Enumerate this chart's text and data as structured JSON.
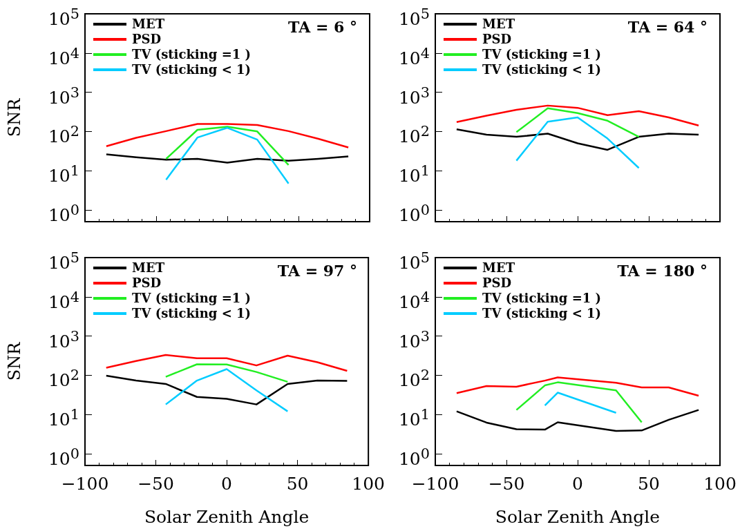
{
  "chart_data": [
    {
      "type": "line",
      "ylabel": "SNR",
      "annotations": [
        "TA = 6 °"
      ],
      "log": "y",
      "legend": "top left",
      "tick_labels": "y",
      "xlim": [
        -100,
        100
      ],
      "xticks": [
        -100,
        -50,
        0,
        50,
        100
      ],
      "ylim": [
        0.5,
        100000
      ],
      "yticks": [
        {
          "value": 1,
          "label": "10$^{0}$"
        },
        {
          "value": 10,
          "label": "10$^{1}$"
        },
        {
          "value": 100,
          "label": "10$^{2}$"
        },
        {
          "value": 1000,
          "label": "10$^{3}$"
        },
        {
          "value": 10000,
          "label": "10$^{4}$"
        },
        {
          "value": 100000,
          "label": "10$^{5}$"
        }
      ],
      "series": [
        {
          "name": "MET",
          "color": "#000000",
          "x": [
            -85,
            -64,
            -43,
            -21,
            0,
            21,
            43,
            64,
            85
          ],
          "values": [
            26,
            22,
            19,
            20,
            16,
            20,
            18,
            20,
            23
          ]
        },
        {
          "name": "PSD",
          "color": "#ff0000",
          "x": [
            -85,
            -64,
            -43,
            -21,
            0,
            21,
            43,
            64,
            85
          ],
          "values": [
            42,
            69,
            102,
            155,
            155,
            146,
            102,
            65,
            39
          ]
        },
        {
          "name": "TV (sticking =1 )",
          "color": "#22ee22",
          "x": [
            -43,
            -21,
            0,
            21,
            43
          ],
          "values": [
            20,
            110,
            132,
            100,
            14
          ]
        },
        {
          "name": "TV (sticking < 1)",
          "color": "#00ccff",
          "x": [
            -43,
            -21,
            0,
            21,
            43
          ],
          "values": [
            5.9,
            70,
            124,
            62,
            4.7
          ]
        }
      ]
    },
    {
      "type": "line",
      "annotations": [
        "TA = 64 °"
      ],
      "log": "y",
      "legend": "top left",
      "tick_labels": "y",
      "xlim": [
        -100,
        100
      ],
      "xticks": [
        -100,
        -50,
        0,
        50,
        100
      ],
      "ylim": [
        0.5,
        100000
      ],
      "yticks": [
        {
          "value": 1,
          "label": "10$^{0}$"
        },
        {
          "value": 10,
          "label": "10$^{1}$"
        },
        {
          "value": 100,
          "label": "10$^{2}$"
        },
        {
          "value": 1000,
          "label": "10$^{3}$"
        },
        {
          "value": 10000,
          "label": "10$^{4}$"
        },
        {
          "value": 100000,
          "label": "10$^{5}$"
        }
      ],
      "series": [
        {
          "name": "MET",
          "color": "#000000",
          "x": [
            -85,
            -64,
            -43,
            -21,
            0,
            21,
            43,
            64,
            85
          ],
          "values": [
            113,
            83,
            73,
            88,
            50,
            34,
            73,
            88,
            83
          ]
        },
        {
          "name": "PSD",
          "color": "#ff0000",
          "x": [
            -85,
            -64,
            -43,
            -21,
            0,
            21,
            43,
            64,
            85
          ],
          "values": [
            174,
            253,
            355,
            457,
            400,
            260,
            330,
            228,
            142
          ]
        },
        {
          "name": "TV (sticking =1 )",
          "color": "#22ee22",
          "x": [
            -43,
            -21,
            0,
            21,
            43
          ],
          "values": [
            96,
            390,
            295,
            188,
            73
          ]
        },
        {
          "name": "TV (sticking < 1)",
          "color": "#00ccff",
          "x": [
            -43,
            -21,
            0,
            21,
            43
          ],
          "values": [
            18,
            177,
            228,
            66,
            11.7
          ]
        }
      ]
    },
    {
      "type": "line",
      "ylabel": "SNR",
      "xlabel": "Solar Zenith Angle",
      "annotations": [
        "TA = 97 °"
      ],
      "log": "y",
      "legend": "top left",
      "xlim": [
        -100,
        100
      ],
      "xticks": [
        -100,
        -50,
        0,
        50,
        100
      ],
      "ylim": [
        0.5,
        100000
      ],
      "yticks": [
        {
          "value": 1,
          "label": "10$^{0}$"
        },
        {
          "value": 10,
          "label": "10$^{1}$"
        },
        {
          "value": 100,
          "label": "10$^{2}$"
        },
        {
          "value": 1000,
          "label": "10$^{3}$"
        },
        {
          "value": 10000,
          "label": "10$^{4}$"
        },
        {
          "value": 100000,
          "label": "10$^{5}$"
        }
      ],
      "series": [
        {
          "name": "MET",
          "color": "#000000",
          "x": [
            -85,
            -64,
            -43,
            -21,
            0,
            21,
            43,
            64,
            85
          ],
          "values": [
            97,
            73,
            60,
            28,
            25,
            18,
            60,
            73,
            72
          ]
        },
        {
          "name": "PSD",
          "color": "#ff0000",
          "x": [
            -85,
            -64,
            -43,
            -21,
            0,
            21,
            43,
            64,
            85
          ],
          "values": [
            155,
            230,
            330,
            270,
            272,
            178,
            316,
            215,
            129
          ]
        },
        {
          "name": "TV (sticking =1 )",
          "color": "#22ee22",
          "x": [
            -43,
            -21,
            0,
            21,
            43
          ],
          "values": [
            91,
            190,
            188,
            121,
            68
          ]
        },
        {
          "name": "TV (sticking < 1)",
          "color": "#00ccff",
          "x": [
            -43,
            -21,
            0,
            21,
            43
          ],
          "values": [
            18,
            73,
            143,
            41,
            12
          ]
        }
      ]
    },
    {
      "type": "line",
      "xlabel": "Solar Zenith Angle",
      "annotations": [
        "TA = 180 °"
      ],
      "log": "y",
      "legend": "top left",
      "xlim": [
        -100,
        100
      ],
      "xticks": [
        -100,
        -50,
        0,
        50,
        100
      ],
      "ylim": [
        0.5,
        100000
      ],
      "yticks": [
        {
          "value": 1,
          "label": "10$^{0}$"
        },
        {
          "value": 10,
          "label": "10$^{1}$"
        },
        {
          "value": 100,
          "label": "10$^{2}$"
        },
        {
          "value": 1000,
          "label": "10$^{3}$"
        },
        {
          "value": 10000,
          "label": "10$^{4}$"
        },
        {
          "value": 100000,
          "label": "10$^{5}$"
        }
      ],
      "series": [
        {
          "name": "MET",
          "color": "#000000",
          "x": [
            -85,
            -64,
            -43,
            -23,
            -14,
            27,
            45,
            64,
            85
          ],
          "values": [
            12,
            6.2,
            4.2,
            4.1,
            6.3,
            3.8,
            3.9,
            7.3,
            13
          ]
        },
        {
          "name": "PSD",
          "color": "#ff0000",
          "x": [
            -85,
            -64,
            -43,
            -23,
            -14,
            27,
            45,
            64,
            85
          ],
          "values": [
            35,
            53,
            51,
            73,
            88,
            64,
            49,
            49,
            30
          ]
        },
        {
          "name": "TV (sticking =1 )",
          "color": "#22ee22",
          "x": [
            -43,
            -23,
            -14,
            27,
            45
          ],
          "values": [
            13,
            55,
            66,
            41,
            6.3
          ]
        },
        {
          "name": "TV (sticking < 1)",
          "color": "#00ccff",
          "x": [
            -23,
            -14,
            27
          ],
          "values": [
            17,
            36,
            11
          ]
        }
      ]
    }
  ]
}
